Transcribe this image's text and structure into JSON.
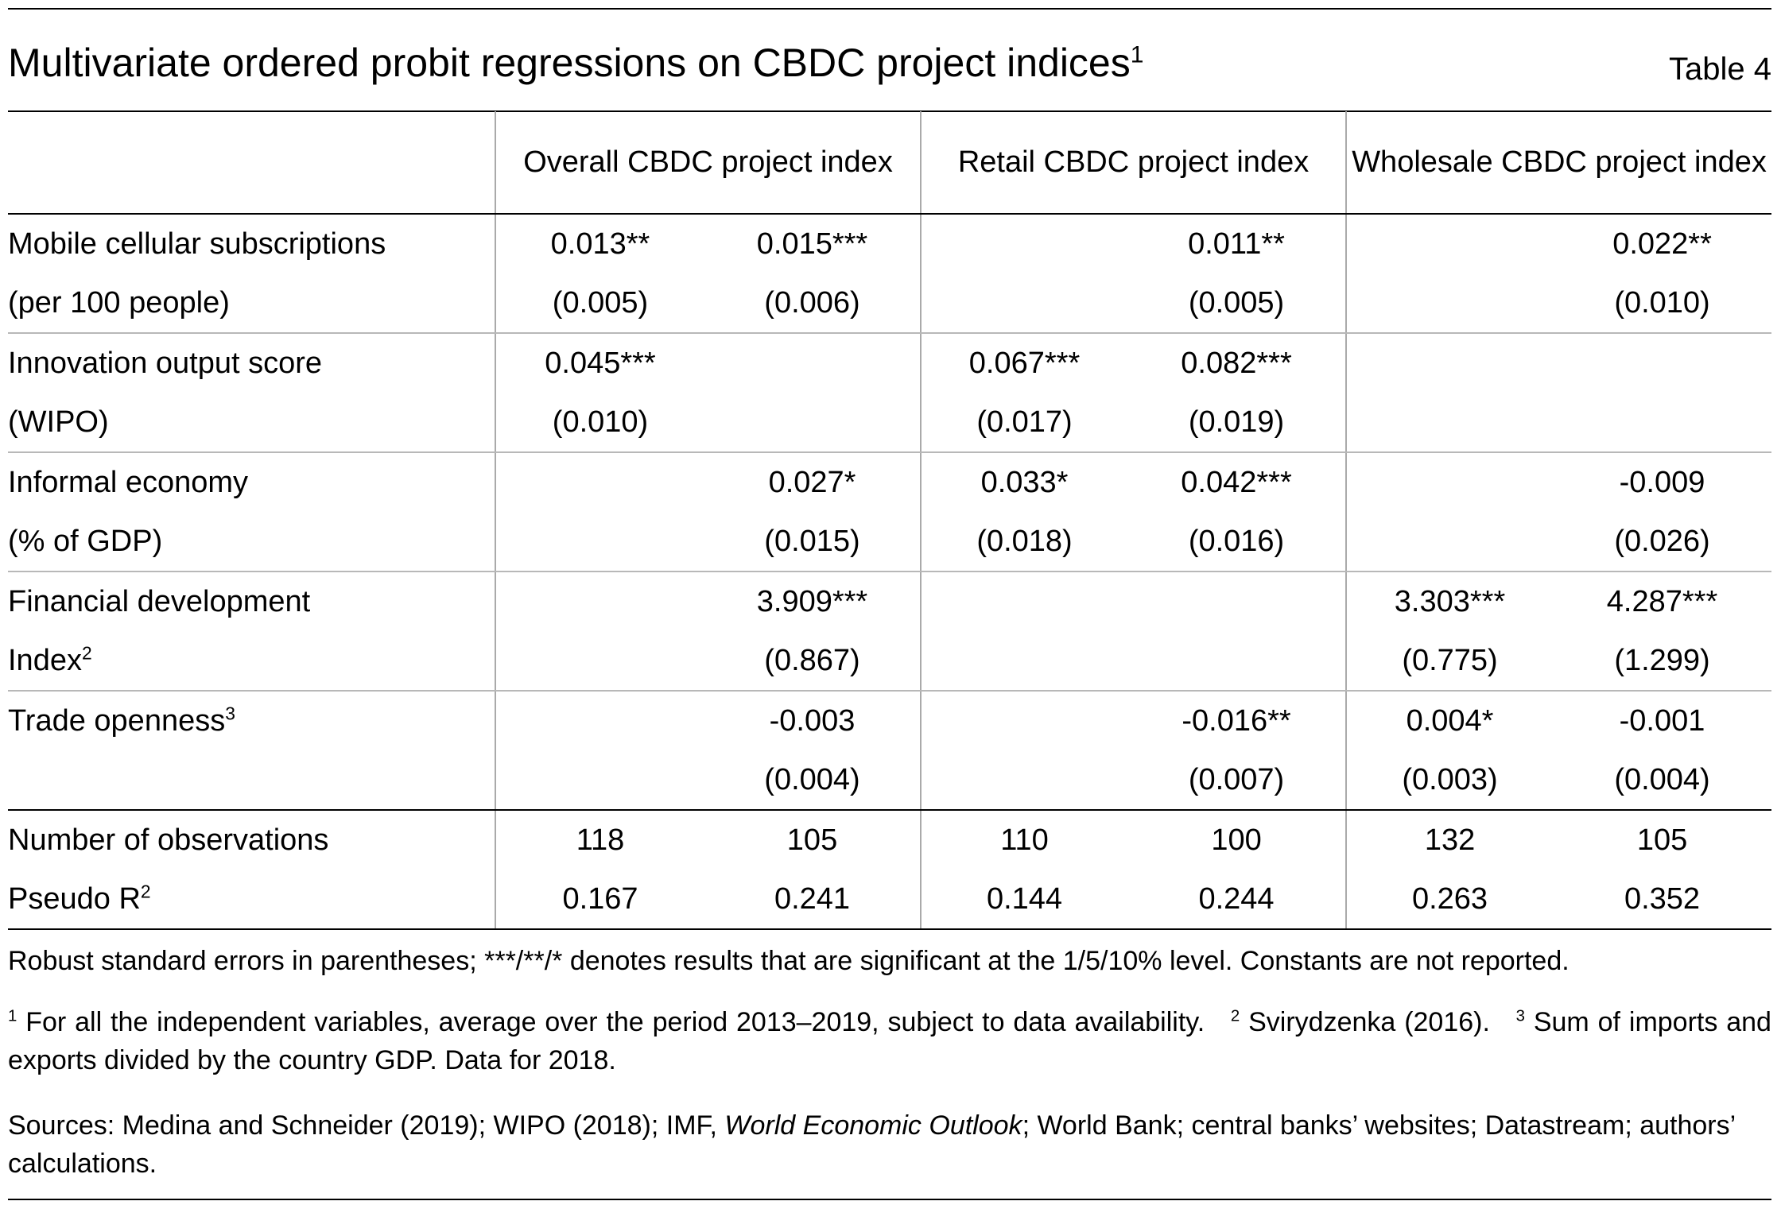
{
  "title": "Multivariate ordered probit regressions on CBDC project indices",
  "title_note": "1",
  "table_number": "Table 4",
  "column_groups": [
    "Overall CBDC project index",
    "Retail CBDC project index",
    "Wholesale CBDC project index"
  ],
  "rows": [
    {
      "label": "Mobile cellular subscriptions",
      "label_note": "",
      "coef": [
        "0.013**",
        "0.015***",
        "",
        "0.011**",
        "",
        "0.022**"
      ],
      "label2": "(per 100 people)",
      "label2_note": "",
      "se": [
        "(0.005)",
        "(0.006)",
        "",
        "(0.005)",
        "",
        "(0.010)"
      ]
    },
    {
      "label": "Innovation output score",
      "label_note": "",
      "coef": [
        "0.045***",
        "",
        "0.067***",
        "0.082***",
        "",
        ""
      ],
      "label2": "(WIPO)",
      "label2_note": "",
      "se": [
        "(0.010)",
        "",
        "(0.017)",
        "(0.019)",
        "",
        ""
      ]
    },
    {
      "label": "Informal economy",
      "label_note": "",
      "coef": [
        "",
        "0.027*",
        "0.033*",
        "0.042***",
        "",
        "-0.009"
      ],
      "label2": "(% of GDP)",
      "label2_note": "",
      "se": [
        "",
        "(0.015)",
        "(0.018)",
        "(0.016)",
        "",
        "(0.026)"
      ]
    },
    {
      "label": "Financial development",
      "label_note": "",
      "coef": [
        "",
        "3.909***",
        "",
        "",
        "3.303***",
        "4.287***"
      ],
      "label2": "Index",
      "label2_note": "2",
      "se": [
        "",
        "(0.867)",
        "",
        "",
        "(0.775)",
        "(1.299)"
      ]
    },
    {
      "label": "Trade openness",
      "label_note": "3",
      "coef": [
        "",
        "-0.003",
        "",
        "-0.016**",
        "0.004*",
        "-0.001"
      ],
      "label2": "",
      "label2_note": "",
      "se": [
        "",
        "(0.004)",
        "",
        "(0.007)",
        "(0.003)",
        "(0.004)"
      ]
    }
  ],
  "stats": [
    {
      "label": "Number of observations",
      "label_note": "",
      "values": [
        "118",
        "105",
        "110",
        "100",
        "132",
        "105"
      ]
    },
    {
      "label": "Pseudo R",
      "label_note": "2",
      "values": [
        "0.167",
        "0.241",
        "0.144",
        "0.244",
        "0.263",
        "0.352"
      ]
    }
  ],
  "notes": {
    "robust": "Robust standard errors in parentheses; ***/**/* denotes results that are significant at the 1/5/10% level. Constants are not reported.",
    "fn1_mark": "1",
    "fn1": "For all the independent variables, average over the period 2013–2019, subject to data availability.",
    "fn2_mark": "2",
    "fn2": "Svirydzenka (2016).",
    "fn3_mark": "3",
    "fn3": "Sum of imports and exports divided by the country GDP. Data for 2018.",
    "sources_prefix": "Sources: Medina and Schneider (2019); WIPO (2018); IMF, ",
    "sources_italic": "World Economic Outlook",
    "sources_suffix": "; World Bank; central banks’ websites; Datastream; authors’ calculations."
  }
}
